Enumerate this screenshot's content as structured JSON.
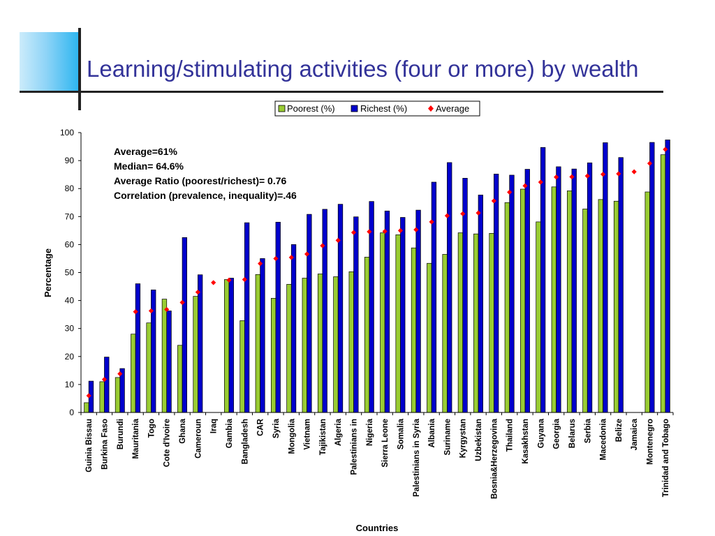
{
  "slide": {
    "title": "Learning/stimulating activities (four or more) by wealth"
  },
  "colors": {
    "poorest": "#99cc33",
    "richest": "#0000cc",
    "average": "#ff0000",
    "title": "#333399"
  },
  "chart_data": {
    "type": "bar",
    "title": "",
    "xlabel": "Countries",
    "ylabel": "Percentage",
    "ylim": [
      0,
      100
    ],
    "yticks": [
      0,
      10,
      20,
      30,
      40,
      50,
      60,
      70,
      80,
      90,
      100
    ],
    "grid": false,
    "legend_position": "top",
    "annotations": [
      "Average=61%",
      "Median= 64.6%",
      "Average Ratio (poorest/richest)= 0.76",
      "Correlation (prevalence, inequality)=.46"
    ],
    "categories": [
      "Guinia Bissau",
      "Burkina Faso",
      "Burundi",
      "Mauritania",
      "Togo",
      "Cote d'Ivoire",
      "Ghana",
      "Cameroun",
      "Iraq",
      "Gambia",
      "Bangladesh",
      "CAR",
      "Syria",
      "Mongolia",
      "Vietnam",
      "Tajikistan",
      "Algeria",
      "Palestinians in",
      "Nigeria",
      "Sierra Leone",
      "Somalia",
      "Palestinians in Syria",
      "Albania",
      "Suriname",
      "Kyrgystan",
      "Uzbekistan",
      "Bosnia&Herzegovina",
      "Thailand",
      "Kasakhstan",
      "Guyana",
      "Georgia",
      "Belarus",
      "Serbia",
      "Macedonia",
      "Belize",
      "Jamaica",
      "Montenegro",
      "Trinidad and Tobago"
    ],
    "series": [
      {
        "name": "Poorest (%)",
        "type": "bar",
        "values": [
          3.5,
          11,
          12.5,
          28,
          32,
          40.5,
          24,
          41.5,
          null,
          47.5,
          32.8,
          49.3,
          40.8,
          45.8,
          48,
          49.5,
          48.5,
          50.3,
          55.5,
          64.2,
          63.5,
          58.8,
          53.3,
          56.5,
          64.2,
          63.8,
          64,
          75,
          79.8,
          68.1,
          80.6,
          79.2,
          72.7,
          76.1,
          75.5,
          null,
          78.8,
          92.1
        ]
      },
      {
        "name": "Richest (%)",
        "type": "bar",
        "values": [
          11.2,
          19.8,
          15.7,
          46,
          43.8,
          36.3,
          62.5,
          49.2,
          null,
          48,
          67.8,
          55,
          68,
          60,
          70.8,
          72.6,
          74.4,
          69.9,
          75.4,
          72,
          69.7,
          72.3,
          82.3,
          89.3,
          83.7,
          77.7,
          85.2,
          84.8,
          86.9,
          94.7,
          87.8,
          87,
          89.2,
          96.4,
          91.1,
          null,
          96.5,
          97.4
        ]
      },
      {
        "name": "Average",
        "type": "scatter",
        "values": [
          6,
          11.8,
          13.8,
          36,
          36.3,
          36.8,
          39.3,
          43,
          46.4,
          47.3,
          47.5,
          53.2,
          55,
          55.4,
          56.6,
          59.6,
          61.5,
          64.3,
          64.6,
          64.7,
          65,
          65.3,
          68.1,
          70.3,
          71,
          71.3,
          75.6,
          78.7,
          81,
          82.3,
          84.1,
          84.2,
          84.5,
          85.1,
          85.3,
          86,
          89,
          94
        ]
      }
    ]
  }
}
